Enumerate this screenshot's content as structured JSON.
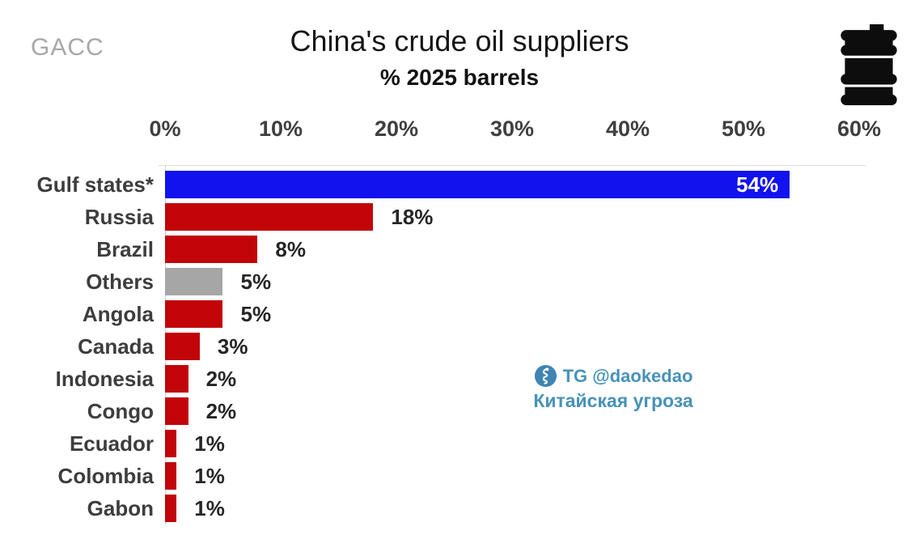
{
  "header": {
    "source_label": "GACC",
    "title": "China's crude oil suppliers",
    "subtitle": "% 2025 barrels"
  },
  "icons": {
    "top_right": "oil-barrel-icon",
    "watermark_logo": "telegram-channel-logo"
  },
  "watermark": {
    "line1": "TG @daokedao",
    "line2": "Китайская угроза",
    "color": "#4792b8"
  },
  "chart_data": {
    "type": "bar",
    "orientation": "horizontal",
    "title": "China's crude oil suppliers",
    "subtitle": "% 2025 barrels",
    "xlabel": "",
    "ylabel": "",
    "xlim": [
      0,
      60
    ],
    "x_ticks": [
      "0%",
      "10%",
      "20%",
      "30%",
      "40%",
      "50%",
      "60%"
    ],
    "grid": false,
    "legend": null,
    "categories": [
      "Gulf states*",
      "Russia",
      "Brazil",
      "Others",
      "Angola",
      "Canada",
      "Indonesia",
      "Congo",
      "Ecuador",
      "Colombia",
      "Gabon"
    ],
    "values": [
      54,
      18,
      8,
      5,
      5,
      3,
      2,
      2,
      1,
      1,
      1
    ],
    "value_labels": [
      "54%",
      "18%",
      "8%",
      "5%",
      "5%",
      "3%",
      "2%",
      "2%",
      "1%",
      "1%",
      "1%"
    ],
    "bar_colors": [
      "#1212ee",
      "#c10508",
      "#c10508",
      "#a6a6a6",
      "#c10508",
      "#c10508",
      "#c10508",
      "#c10508",
      "#c10508",
      "#c10508",
      "#c10508"
    ],
    "label_inside": [
      true,
      false,
      false,
      false,
      false,
      false,
      false,
      false,
      false,
      false,
      false
    ],
    "colors_meaning": {
      "#1212ee": "Gulf states highlight",
      "#c10508": "individual country",
      "#a6a6a6": "Others aggregate"
    }
  }
}
